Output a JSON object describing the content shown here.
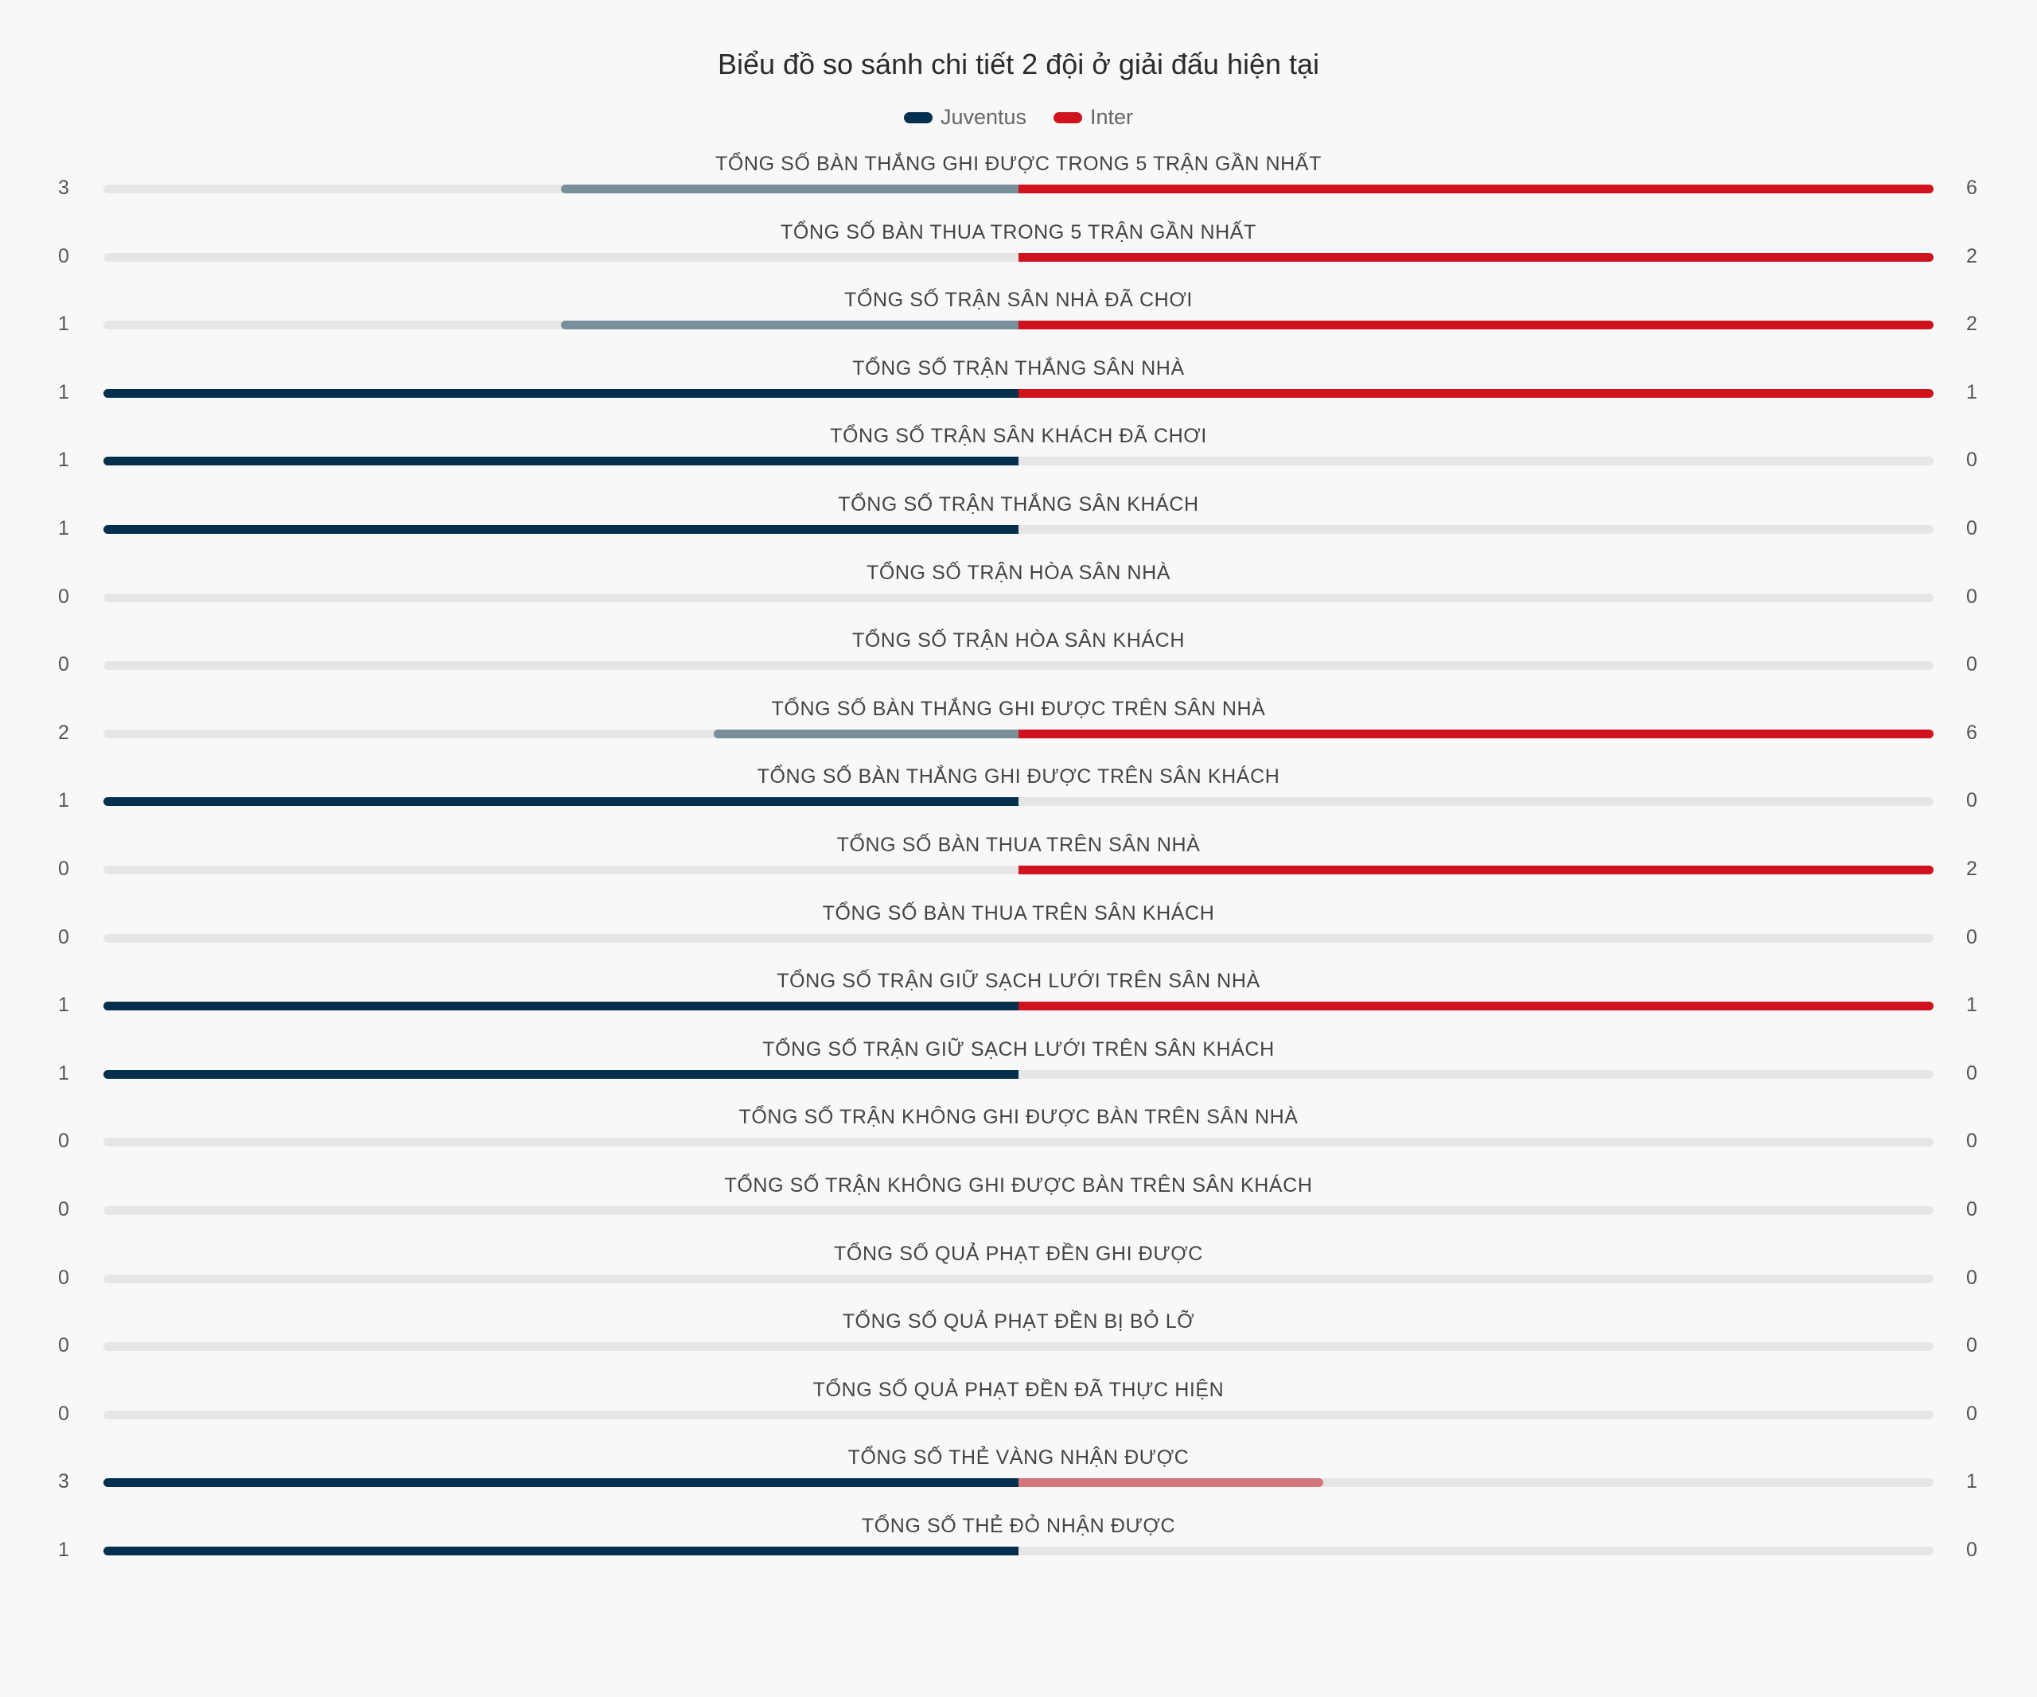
{
  "chart_data": {
    "type": "bar",
    "orientation": "diverging-horizontal",
    "title": "Biểu đồ so sánh chi tiết 2 đội ở giải đấu hiện tại",
    "legend_position": "top",
    "series": [
      {
        "name": "Juventus",
        "color": "#04304d",
        "muted_color": "#788f9a",
        "values": [
          3,
          0,
          1,
          1,
          1,
          1,
          0,
          0,
          2,
          1,
          0,
          0,
          1,
          1,
          0,
          0,
          0,
          0,
          0,
          3,
          1
        ]
      },
      {
        "name": "Inter",
        "color": "#d0121e",
        "muted_color": "#d4777d",
        "values": [
          6,
          2,
          2,
          1,
          0,
          0,
          0,
          0,
          6,
          0,
          2,
          0,
          1,
          0,
          0,
          0,
          0,
          0,
          0,
          1,
          0
        ]
      }
    ],
    "categories": [
      "TỔNG SỐ BÀN THẮNG GHI ĐƯỢC TRONG 5 TRẬN GẦN NHẤT",
      "TỔNG SỐ BÀN THUA TRONG 5 TRẬN GẦN NHẤT",
      "TỔNG SỐ TRẬN SÂN NHÀ ĐÃ CHƠI",
      "TỔNG SỐ TRẬN THẮNG SÂN NHÀ",
      "TỔNG SỐ TRẬN SÂN KHÁCH ĐÃ CHƠI",
      "TỔNG SỐ TRẬN THẮNG SÂN KHÁCH",
      "TỔNG SỐ TRẬN HÒA SÂN NHÀ",
      "TỔNG SỐ TRẬN HÒA SÂN KHÁCH",
      "TỔNG SỐ BÀN THẮNG GHI ĐƯỢC TRÊN SÂN NHÀ",
      "TỔNG SỐ BÀN THẮNG GHI ĐƯỢC TRÊN SÂN KHÁCH",
      "TỔNG SỐ BÀN THUA TRÊN SÂN NHÀ",
      "TỔNG SỐ BÀN THUA TRÊN SÂN KHÁCH",
      "TỔNG SỐ TRẬN GIỮ SẠCH LƯỚI TRÊN SÂN NHÀ",
      "TỔNG SỐ TRẬN GIỮ SẠCH LƯỚI TRÊN SÂN KHÁCH",
      "TỔNG SỐ TRẬN KHÔNG GHI ĐƯỢC BÀN TRÊN SÂN NHÀ",
      "TỔNG SỐ TRẬN KHÔNG GHI ĐƯỢC BÀN TRÊN SÂN KHÁCH",
      "TỔNG SỐ QUẢ PHẠT ĐỀN GHI ĐƯỢC",
      "TỔNG SỐ QUẢ PHẠT ĐỀN BỊ BỎ LỠ",
      "TỔNG SỐ QUẢ PHẠT ĐỀN ĐÃ THỰC HIỆN",
      "TỔNG SỐ THẺ VÀNG NHẬN ĐƯỢC",
      "TỔNG SỐ THẺ ĐỎ NHẬN ĐƯỢC"
    ],
    "track_color": "#e6e6e6"
  }
}
